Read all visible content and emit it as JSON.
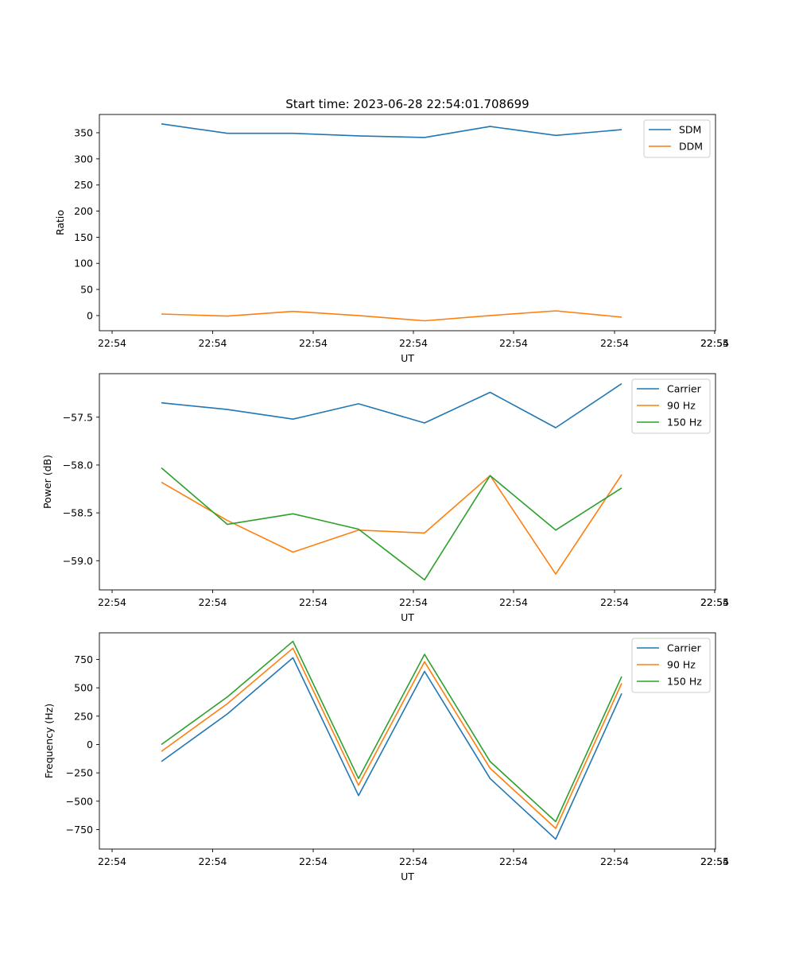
{
  "figure": {
    "title": "Start time: 2023-06-28 22:54:01.708699"
  },
  "chart_data": [
    {
      "type": "line",
      "title": "Start time: 2023-06-28 22:54:01.708699",
      "xlabel": "UT",
      "ylabel": "Ratio",
      "x_tick_labels": [
        "22:54",
        "22:54",
        "22:54",
        "22:54",
        "22:54",
        "22:54",
        "22:54",
        "22:55"
      ],
      "y_ticks": [
        0,
        50,
        100,
        150,
        200,
        250,
        300,
        350
      ],
      "ylim": [
        -29,
        385
      ],
      "legend_position": "top-right",
      "grid": false,
      "series": [
        {
          "name": "SDM",
          "color": "#1f77b4",
          "values": [
            367,
            349,
            349,
            344,
            341,
            362,
            345,
            356
          ]
        },
        {
          "name": "DDM",
          "color": "#ff7f0e",
          "values": [
            3,
            -1,
            8,
            0,
            -10,
            0,
            9,
            -3
          ]
        }
      ]
    },
    {
      "type": "line",
      "title": "",
      "xlabel": "UT",
      "ylabel": "Power (dB)",
      "x_tick_labels": [
        "22:54",
        "22:54",
        "22:54",
        "22:54",
        "22:54",
        "22:54",
        "22:54",
        "22:55"
      ],
      "y_ticks": [
        -59.0,
        -58.5,
        -58.0,
        -57.5
      ],
      "y_tick_labels": [
        "−59.0",
        "−58.5",
        "−58.0",
        "−57.5"
      ],
      "ylim": [
        -59.305,
        -57.045
      ],
      "legend_position": "top-right",
      "grid": false,
      "series": [
        {
          "name": "Carrier",
          "color": "#1f77b4",
          "values": [
            -57.35,
            -57.42,
            -57.52,
            -57.36,
            -57.56,
            -57.24,
            -57.61,
            -57.15
          ]
        },
        {
          "name": "90 Hz",
          "color": "#ff7f0e",
          "values": [
            -58.18,
            -58.58,
            -58.91,
            -58.68,
            -58.71,
            -58.11,
            -59.14,
            -58.1
          ]
        },
        {
          "name": "150 Hz",
          "color": "#2ca02c",
          "values": [
            -58.03,
            -58.62,
            -58.51,
            -58.67,
            -59.2,
            -58.11,
            -58.68,
            -58.24
          ]
        }
      ]
    },
    {
      "type": "line",
      "title": "",
      "xlabel": "UT",
      "ylabel": "Frequency (Hz)",
      "x_tick_labels": [
        "22:54",
        "22:54",
        "22:54",
        "22:54",
        "22:54",
        "22:54",
        "22:54",
        "22:55"
      ],
      "y_ticks": [
        -750,
        -500,
        -250,
        0,
        250,
        500,
        750
      ],
      "y_tick_labels": [
        "−750",
        "−500",
        "−250",
        "0",
        "250",
        "500",
        "750"
      ],
      "ylim": [
        -922,
        985
      ],
      "legend_position": "top-right",
      "grid": false,
      "series": [
        {
          "name": "Carrier",
          "color": "#1f77b4",
          "values": [
            -150,
            270,
            765,
            -450,
            645,
            -300,
            -835,
            450
          ]
        },
        {
          "name": "90 Hz",
          "color": "#ff7f0e",
          "values": [
            -60,
            360,
            850,
            -360,
            730,
            -210,
            -740,
            540
          ]
        },
        {
          "name": "150 Hz",
          "color": "#2ca02c",
          "values": [
            0,
            420,
            910,
            -300,
            795,
            -150,
            -680,
            600
          ]
        }
      ]
    }
  ]
}
